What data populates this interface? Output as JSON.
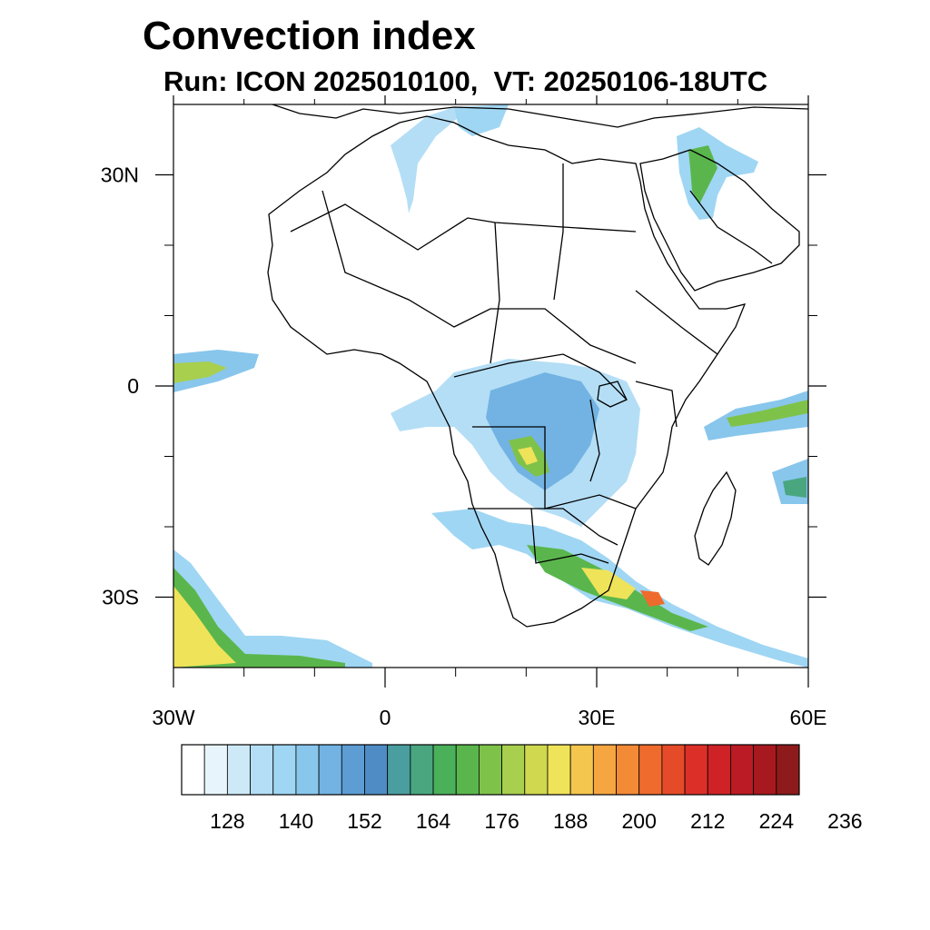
{
  "title": "Convection index",
  "subtitle": "Run: ICON 2025010100,  VT: 20250106-18UTC",
  "map": {
    "lon_range": [
      -30,
      60
    ],
    "lat_range": [
      -40,
      40
    ],
    "y_ticks": [
      {
        "lat": 30,
        "label": "30N"
      },
      {
        "lat": 0,
        "label": "0"
      },
      {
        "lat": -30,
        "label": "30S"
      }
    ],
    "x_ticks": [
      {
        "lon": -30,
        "label": "30W"
      },
      {
        "lon": 0,
        "label": "0"
      },
      {
        "lon": 30,
        "label": "30E"
      },
      {
        "lon": 60,
        "label": "60E"
      }
    ],
    "minor_x_ticks": [
      -20,
      -10,
      10,
      20,
      40,
      50
    ],
    "minor_y_ticks": [
      20,
      10,
      -10,
      -20
    ]
  },
  "colorbar": {
    "colors": [
      "#ffffff",
      "#e8f4fb",
      "#cde9f7",
      "#b4def5",
      "#9fd6f3",
      "#88c6ec",
      "#72b3e3",
      "#5d9dd4",
      "#4f8cc5",
      "#4b9e9f",
      "#49a67f",
      "#4ab05a",
      "#5ab64c",
      "#7fc24a",
      "#a8cf4e",
      "#cfd84e",
      "#efe35a",
      "#f5c64e",
      "#f5a640",
      "#f28a36",
      "#ee6b2d",
      "#e54b28",
      "#dc2f28",
      "#cf2227",
      "#bb1b24",
      "#a8191f",
      "#8e1b1b"
    ],
    "labels": [
      "128",
      "140",
      "152",
      "164",
      "176",
      "188",
      "200",
      "212",
      "224",
      "236"
    ]
  },
  "legend_colors": {
    "border": "#000000",
    "background": "#ffffff"
  }
}
